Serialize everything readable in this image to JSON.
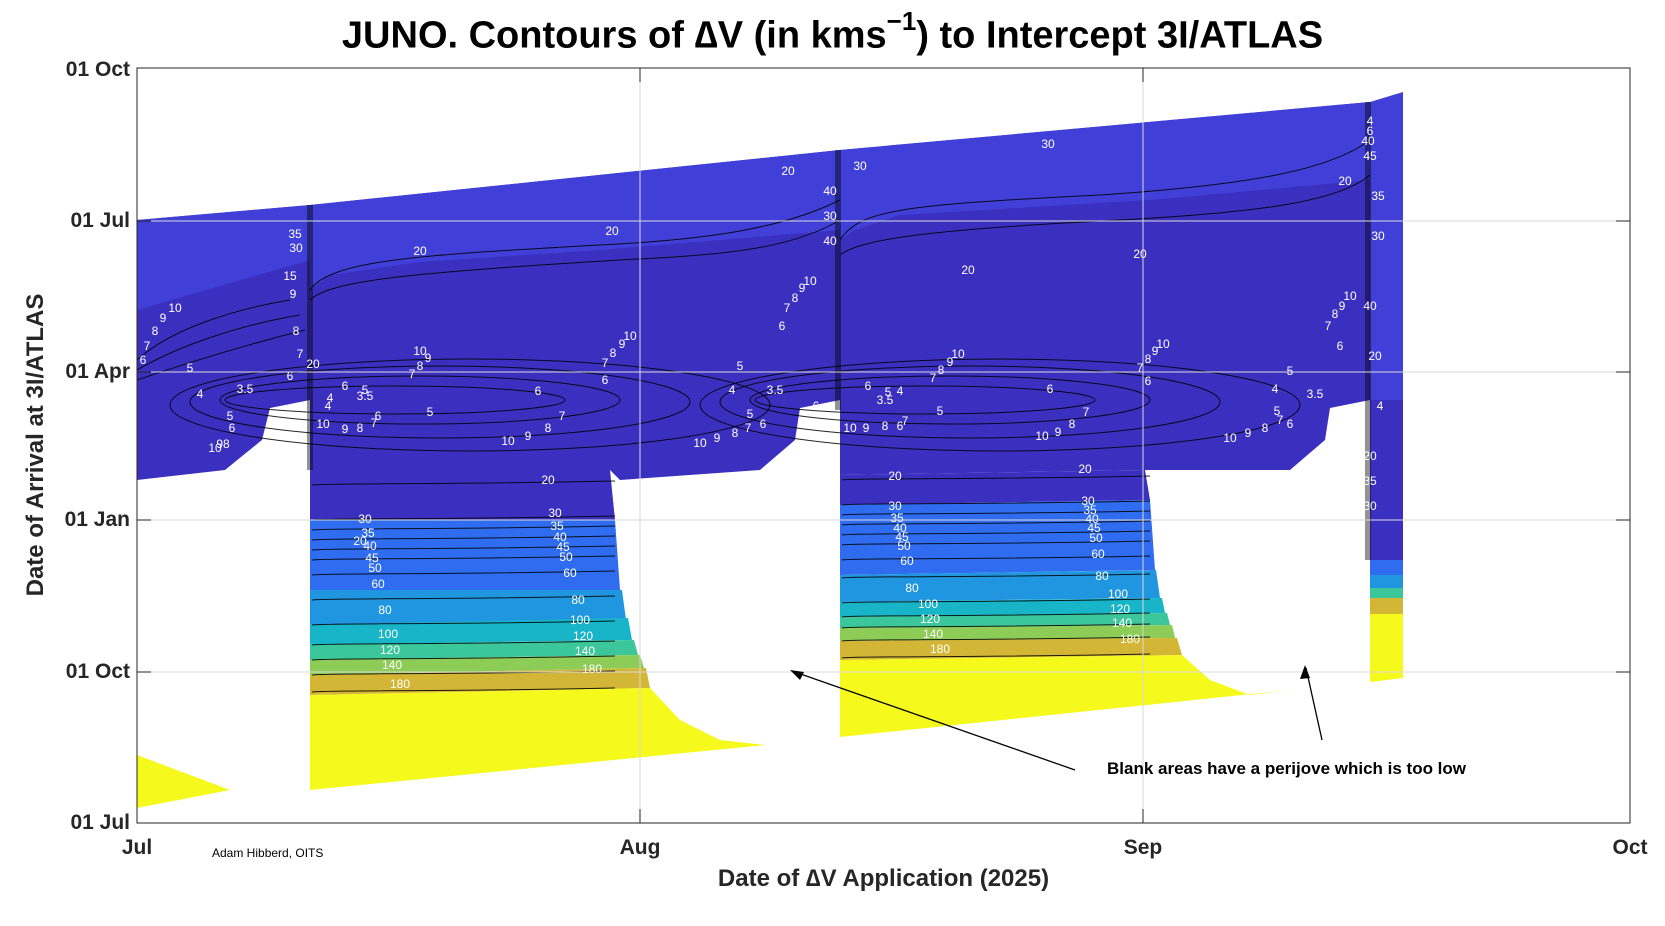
{
  "chart_data": {
    "type": "contour",
    "title_main": "JUNO. Contours of ∆V (in kms",
    "title_exp": "−1",
    "title_tail": ") to Intercept 3I/ATLAS",
    "xlabel": "Date of ∆V Application (2025)",
    "ylabel": "Date of Arrival at 3I/ATLAS",
    "x_ticks": [
      "Jul",
      "Aug",
      "Sep",
      "Oct"
    ],
    "y_ticks": [
      "01 Jul",
      "01 Oct",
      "01 Jan",
      "01 Apr",
      "01 Jul",
      "01 Oct"
    ],
    "grid": true,
    "contour_levels": [
      3.5,
      4,
      5,
      6,
      7,
      8,
      9,
      10,
      20,
      30,
      35,
      40,
      45,
      50,
      60,
      80,
      100,
      120,
      140,
      180
    ],
    "level_colors": {
      "low": "#3b2fc0",
      "mid_20": "#4040d8",
      "30_60": "#2f6cf0",
      "80": "#2196e0",
      "100": "#18b5c8",
      "120": "#3cc79a",
      "140": "#8ccc57",
      "160": "#d4b636",
      "180": "#f6f91c"
    },
    "annotation": "Blank areas have a perijove which is too low",
    "credit": "Adam Hibberd, OITS"
  }
}
